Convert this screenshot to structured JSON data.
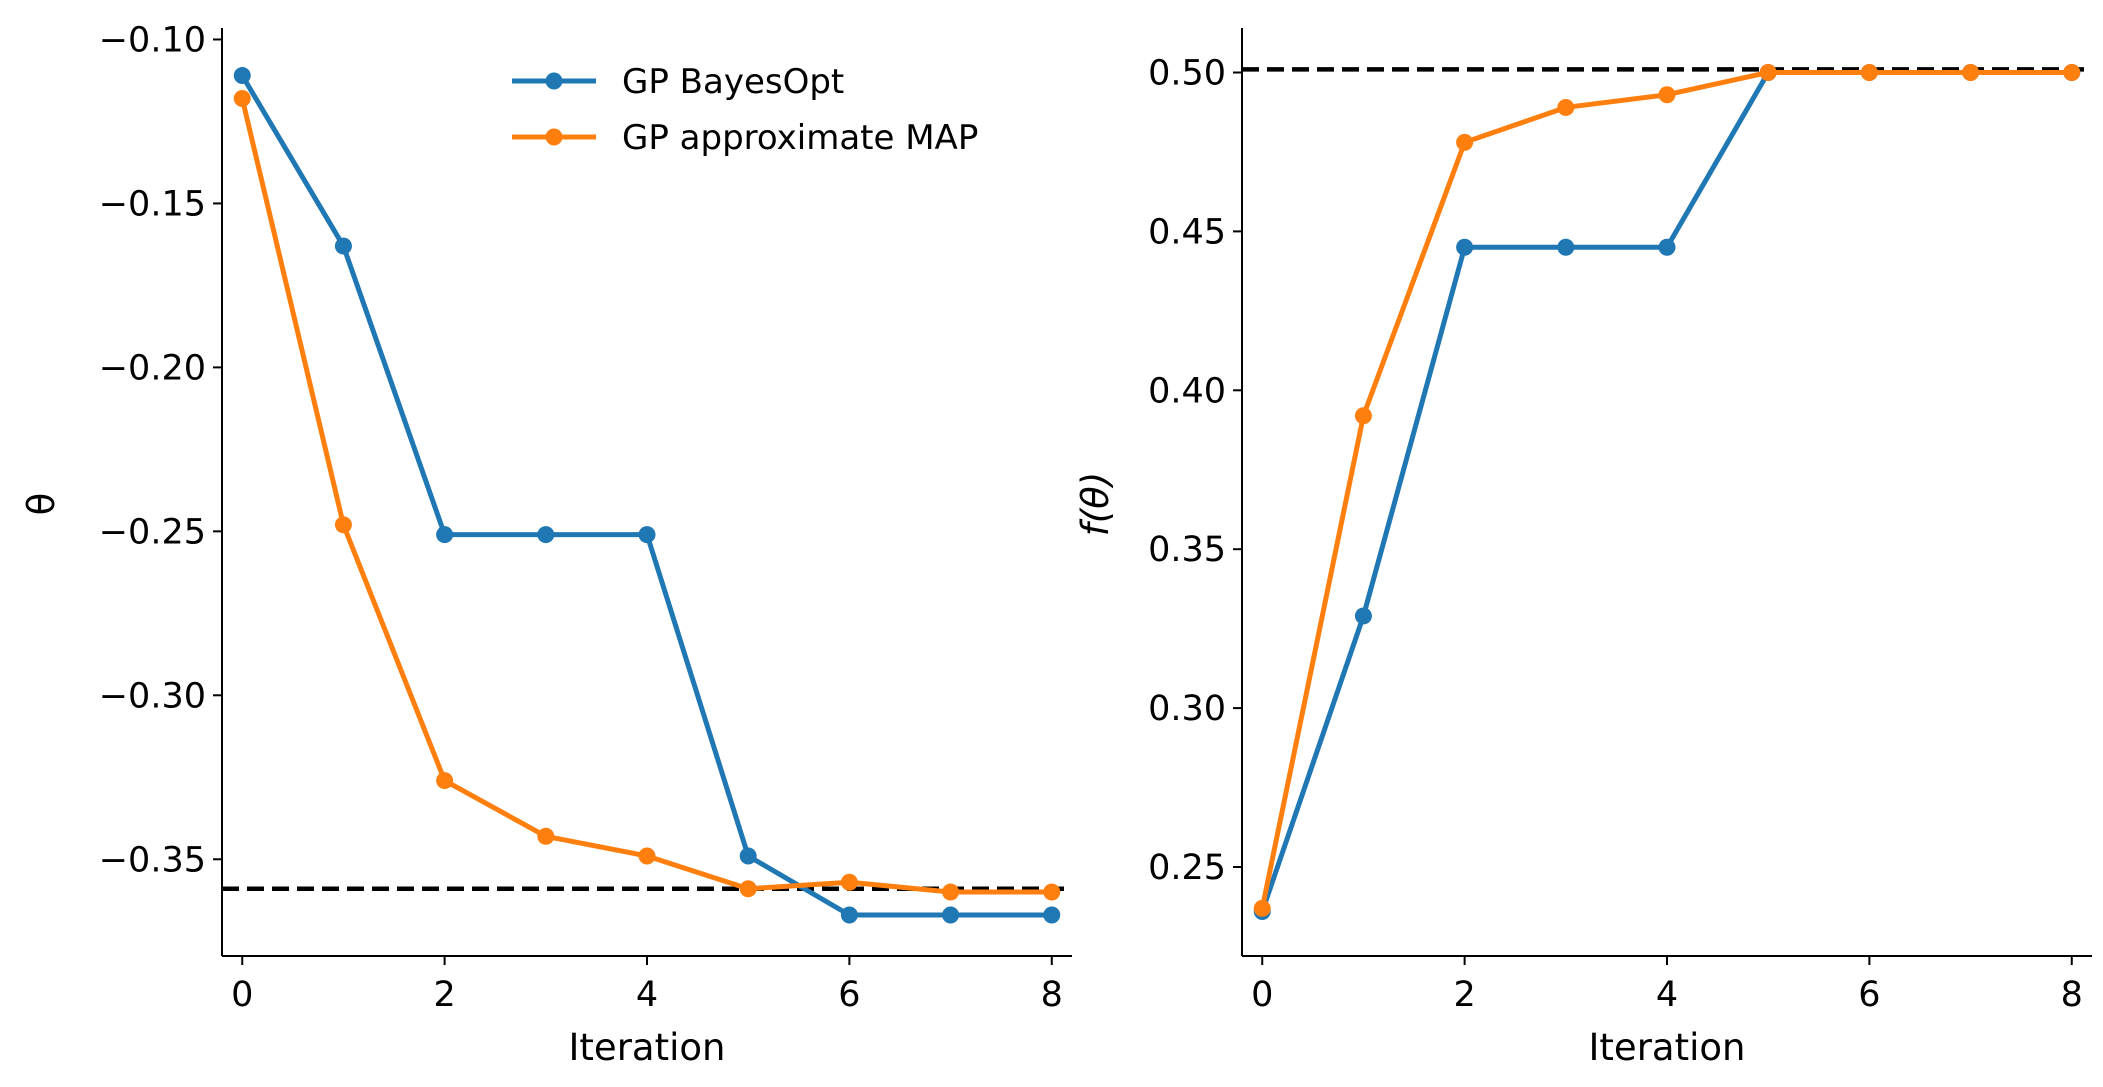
{
  "chart_data": [
    {
      "type": "line",
      "xlabel": "Iteration",
      "ylabel": "θ",
      "xlim": [
        -0.2,
        8.2
      ],
      "ylim": [
        -0.3795,
        -0.0965
      ],
      "xticks": [
        0,
        2,
        4,
        6,
        8
      ],
      "xtick_labels": [
        "0",
        "2",
        "4",
        "6",
        "8"
      ],
      "yticks": [
        -0.1,
        -0.15,
        -0.2,
        -0.25,
        -0.3,
        -0.35
      ],
      "ytick_labels": [
        "−0.10",
        "−0.15",
        "−0.20",
        "−0.25",
        "−0.30",
        "−0.35"
      ],
      "reference_line": {
        "y": -0.359,
        "style": "dashed",
        "color": "#000000"
      },
      "grid": false,
      "legend": {
        "placement": "top-right"
      },
      "x": [
        0,
        1,
        2,
        3,
        4,
        5,
        6,
        7,
        8
      ],
      "series": [
        {
          "name": "GP BayesOpt",
          "color": "#1f77b4",
          "values": [
            -0.111,
            -0.163,
            -0.251,
            -0.251,
            -0.251,
            -0.349,
            -0.367,
            -0.367,
            -0.367
          ]
        },
        {
          "name": "GP approximate MAP",
          "color": "#ff7f0e",
          "values": [
            -0.118,
            -0.248,
            -0.326,
            -0.343,
            -0.349,
            -0.359,
            -0.357,
            -0.36,
            -0.36
          ]
        }
      ]
    },
    {
      "type": "line",
      "xlabel": "Iteration",
      "ylabel": "f(θ)",
      "xlim": [
        -0.2,
        8.2
      ],
      "ylim": [
        0.222,
        0.514
      ],
      "xticks": [
        0,
        2,
        4,
        6,
        8
      ],
      "xtick_labels": [
        "0",
        "2",
        "4",
        "6",
        "8"
      ],
      "yticks": [
        0.25,
        0.3,
        0.35,
        0.4,
        0.45,
        0.5
      ],
      "ytick_labels": [
        "0.25",
        "0.30",
        "0.35",
        "0.40",
        "0.45",
        "0.50"
      ],
      "reference_line": {
        "y": 0.501,
        "style": "dashed",
        "color": "#000000"
      },
      "grid": false,
      "x": [
        0,
        1,
        2,
        3,
        4,
        5,
        6,
        7,
        8
      ],
      "series": [
        {
          "name": "GP BayesOpt",
          "color": "#1f77b4",
          "values": [
            0.236,
            0.329,
            0.445,
            0.445,
            0.445,
            0.5,
            0.5,
            0.5,
            0.5
          ]
        },
        {
          "name": "GP approximate MAP",
          "color": "#ff7f0e",
          "values": [
            0.237,
            0.392,
            0.478,
            0.489,
            0.493,
            0.5,
            0.5,
            0.5,
            0.5
          ]
        }
      ]
    }
  ]
}
